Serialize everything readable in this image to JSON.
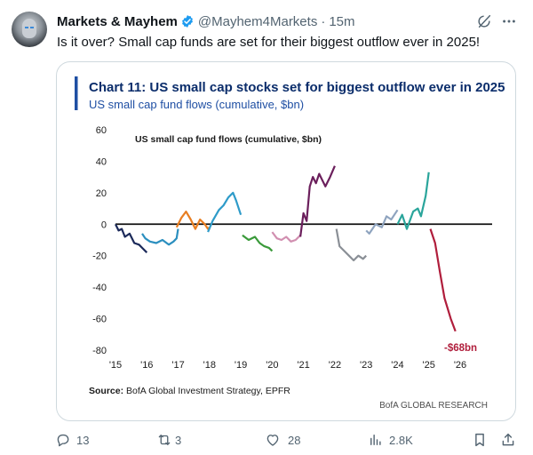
{
  "tweet": {
    "author": {
      "name": "Markets & Mayhem",
      "handle": "@Mayhem4Markets",
      "avatar_icon": "robot-avatar",
      "verified": true,
      "verified_color": "#1d9bf0"
    },
    "separator": "·",
    "time": "15m",
    "text": "Is it over? Small cap funds are set for their biggest outflow ever in 2025!",
    "actions": {
      "replies": "13",
      "reposts": "3",
      "likes": "28",
      "views": "2.8K"
    }
  },
  "chart_data": {
    "type": "line",
    "title": "Chart 11: US small cap stocks set for biggest outflow ever in 2025",
    "subtitle": "US small cap fund flows (cumulative, $bn)",
    "inner_label": "US small cap fund flows (cumulative, $bn)",
    "x_ticks": [
      "'15",
      "'16",
      "'17",
      "'18",
      "'19",
      "'20",
      "'21",
      "'22",
      "'23",
      "'24",
      "'25",
      "'26"
    ],
    "y_ticks": [
      "60",
      "40",
      "20",
      "0",
      "-20",
      "-40",
      "-60",
      "-80"
    ],
    "ylim": [
      -80,
      60
    ],
    "xlim": [
      2015,
      2026
    ],
    "annotation": "-$68bn",
    "annotation_color": "#b01e3c",
    "source_label": "Source:",
    "source_text": " BofA Global Investment Strategy, EPFR",
    "footer": "BofA GLOBAL RESEARCH",
    "title_color": "#0b2d6b",
    "accent_bar_color": "#1f4fa3",
    "series": [
      {
        "color": "#1c2a5a",
        "points": [
          [
            2015.0,
            0
          ],
          [
            2015.1,
            -4
          ],
          [
            2015.2,
            -3
          ],
          [
            2015.3,
            -8
          ],
          [
            2015.45,
            -6
          ],
          [
            2015.6,
            -12
          ],
          [
            2015.75,
            -13
          ],
          [
            2015.85,
            -15
          ],
          [
            2016.0,
            -18
          ]
        ]
      },
      {
        "color": "#2b8fbf",
        "points": [
          [
            2015.85,
            -6
          ],
          [
            2015.95,
            -9
          ],
          [
            2016.1,
            -11
          ],
          [
            2016.3,
            -12
          ],
          [
            2016.5,
            -10
          ],
          [
            2016.7,
            -13
          ],
          [
            2016.85,
            -11
          ],
          [
            2016.95,
            -9
          ],
          [
            2017.0,
            -3
          ]
        ]
      },
      {
        "color": "#e87e22",
        "points": [
          [
            2016.95,
            -2
          ],
          [
            2017.1,
            4
          ],
          [
            2017.25,
            8
          ],
          [
            2017.4,
            3
          ],
          [
            2017.55,
            -3
          ],
          [
            2017.7,
            3
          ],
          [
            2017.85,
            0
          ],
          [
            2017.95,
            -3
          ],
          [
            2018.0,
            -2
          ]
        ]
      },
      {
        "color": "#2e9bc9",
        "points": [
          [
            2017.95,
            -5
          ],
          [
            2018.1,
            2
          ],
          [
            2018.3,
            9
          ],
          [
            2018.45,
            12
          ],
          [
            2018.6,
            17
          ],
          [
            2018.75,
            20
          ],
          [
            2018.85,
            15
          ],
          [
            2018.95,
            9
          ],
          [
            2019.0,
            6
          ]
        ]
      },
      {
        "color": "#3a9a3a",
        "points": [
          [
            2019.05,
            -7
          ],
          [
            2019.25,
            -10
          ],
          [
            2019.45,
            -8
          ],
          [
            2019.6,
            -12
          ],
          [
            2019.75,
            -14
          ],
          [
            2019.9,
            -15
          ],
          [
            2020.0,
            -17
          ]
        ]
      },
      {
        "color": "#d18fb0",
        "points": [
          [
            2020.0,
            -5
          ],
          [
            2020.15,
            -9
          ],
          [
            2020.3,
            -10
          ],
          [
            2020.45,
            -8
          ],
          [
            2020.6,
            -11
          ],
          [
            2020.75,
            -10
          ],
          [
            2020.9,
            -7
          ]
        ]
      },
      {
        "color": "#6b1f5c",
        "points": [
          [
            2020.9,
            -8
          ],
          [
            2021.0,
            7
          ],
          [
            2021.1,
            2
          ],
          [
            2021.2,
            24
          ],
          [
            2021.3,
            30
          ],
          [
            2021.4,
            26
          ],
          [
            2021.5,
            32
          ],
          [
            2021.7,
            24
          ],
          [
            2021.85,
            30
          ],
          [
            2022.0,
            37
          ]
        ]
      },
      {
        "color": "#8a8f96",
        "points": [
          [
            2022.05,
            -3
          ],
          [
            2022.15,
            -14
          ],
          [
            2022.3,
            -17
          ],
          [
            2022.45,
            -20
          ],
          [
            2022.6,
            -23
          ],
          [
            2022.75,
            -20
          ],
          [
            2022.9,
            -22
          ],
          [
            2023.0,
            -20
          ]
        ]
      },
      {
        "color": "#8fa4bf",
        "points": [
          [
            2023.0,
            -4
          ],
          [
            2023.1,
            -6
          ],
          [
            2023.3,
            0
          ],
          [
            2023.5,
            -2
          ],
          [
            2023.65,
            5
          ],
          [
            2023.8,
            3
          ],
          [
            2024.0,
            9
          ]
        ]
      },
      {
        "color": "#2aa59b",
        "points": [
          [
            2024.0,
            0
          ],
          [
            2024.15,
            6
          ],
          [
            2024.3,
            -3
          ],
          [
            2024.5,
            8
          ],
          [
            2024.65,
            10
          ],
          [
            2024.75,
            5
          ],
          [
            2024.9,
            18
          ],
          [
            2025.0,
            33
          ]
        ]
      },
      {
        "color": "#b01e3c",
        "points": [
          [
            2025.05,
            -3
          ],
          [
            2025.2,
            -12
          ],
          [
            2025.35,
            -30
          ],
          [
            2025.5,
            -47
          ],
          [
            2025.7,
            -60
          ],
          [
            2025.85,
            -68
          ]
        ]
      }
    ]
  }
}
